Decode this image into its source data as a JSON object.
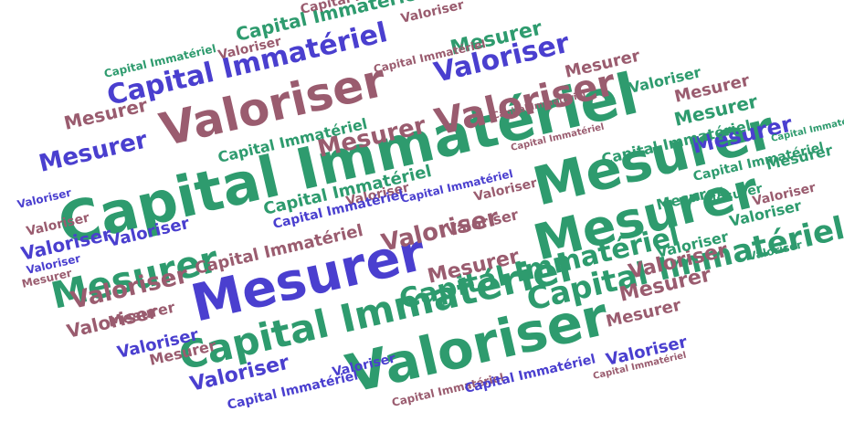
{
  "colors": {
    "green": "#2e9b6e",
    "mauve": "#9a5c6f",
    "blue": "#4a3fcf"
  },
  "words": {
    "capital": "Capital Immatériel",
    "mesurer": "Mesurer",
    "valoriser": "Valoriser"
  }
}
